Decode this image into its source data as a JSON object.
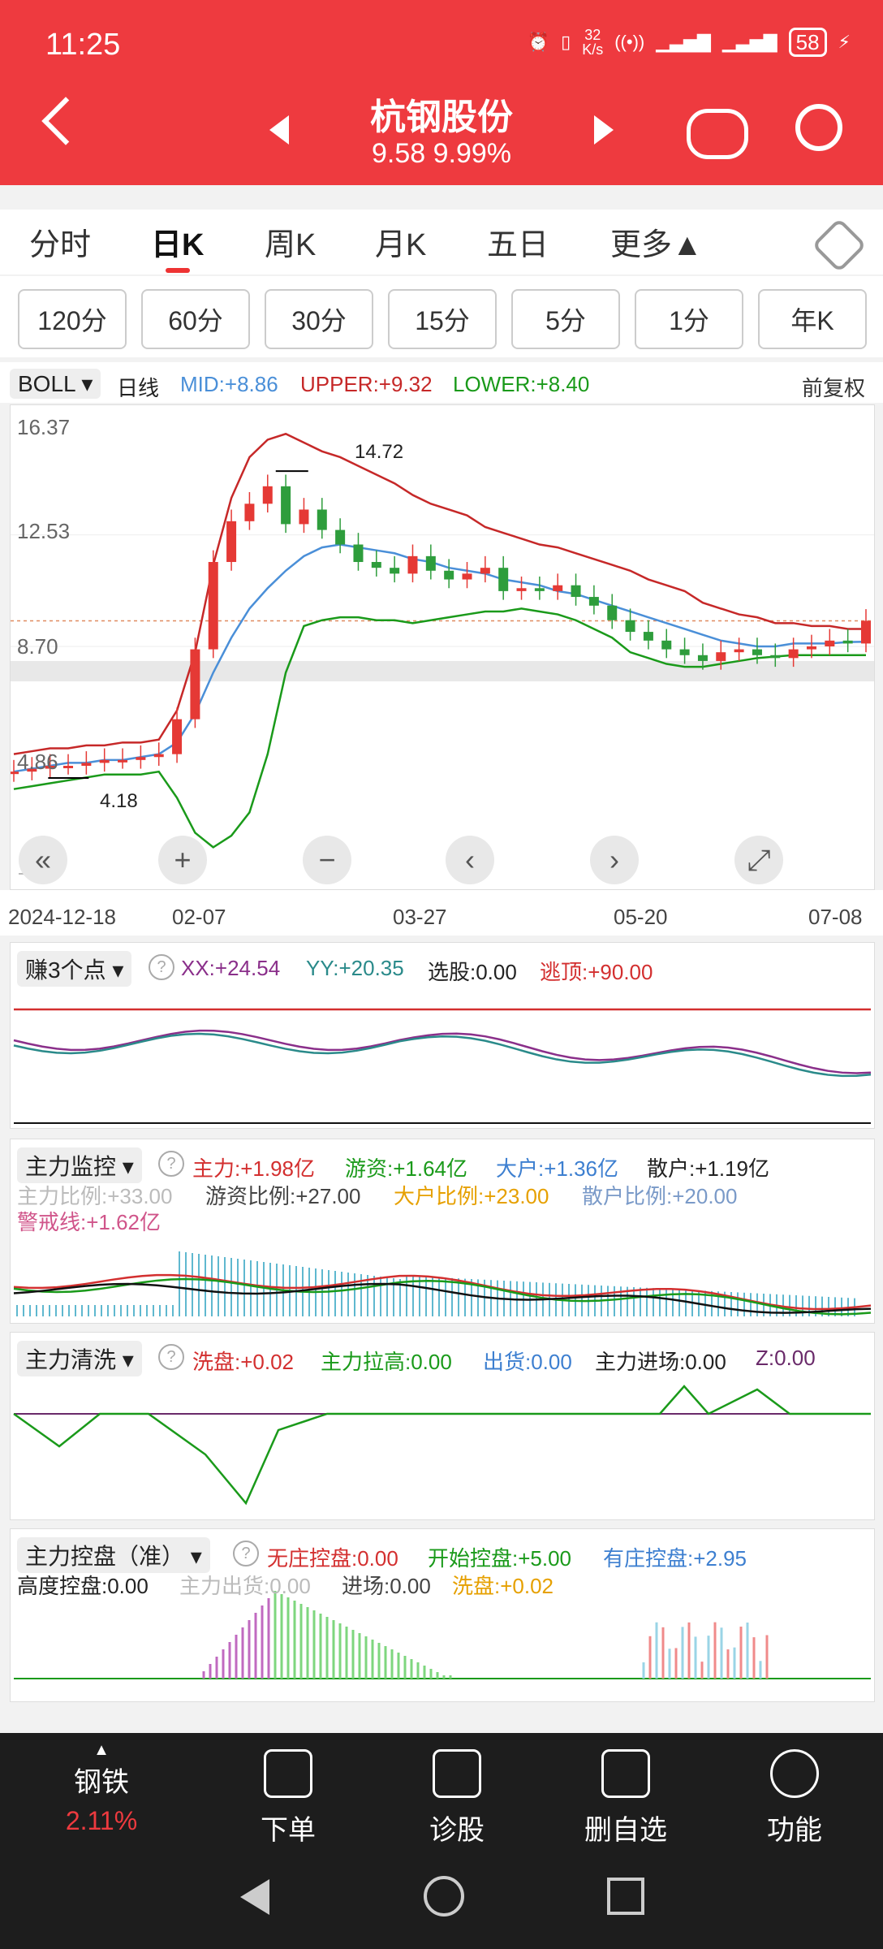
{
  "status": {
    "time": "11:25",
    "speed": "32\nK/s",
    "battery": "58"
  },
  "header": {
    "title": "杭钢股份",
    "price_change": "9.58 9.99%"
  },
  "tabs": [
    "分时",
    "日K",
    "周K",
    "月K",
    "五日",
    "更多▲"
  ],
  "intervals": [
    "120分",
    "60分",
    "30分",
    "15分",
    "5分",
    "1分",
    "年K"
  ],
  "boll": {
    "indicator": "BOLL",
    "period": "日线",
    "mid": "MID:+8.86",
    "upper": "UPPER:+9.32",
    "lower": "LOWER:+8.40",
    "adjust": "前复权"
  },
  "chart": {
    "y_ticks": [
      "16.37",
      "12.53",
      "8.70",
      "4.86",
      "1.03"
    ],
    "x_ticks": [
      "2024-12-18",
      "02-07",
      "03-27",
      "05-20",
      "07-08"
    ],
    "high_label": "14.72",
    "low_label": "4.18",
    "colors": {
      "up": "#e53935",
      "down": "#2e9d3c",
      "mid": "#4a8fd8",
      "upper": "#c62828",
      "lower": "#1a9a1a"
    }
  },
  "chart_data": {
    "type": "candlestick",
    "x_range": [
      "2024-12-18",
      "2025-07-08"
    ],
    "ylim": [
      1.03,
      16.37
    ],
    "y_ticks": [
      16.37,
      12.53,
      8.7,
      4.86,
      1.03
    ],
    "high": 14.72,
    "low": 4.18,
    "upper": [
      5.0,
      5.1,
      5.2,
      5.2,
      5.3,
      5.3,
      5.4,
      5.4,
      5.5,
      6.5,
      8.5,
      11.5,
      13.8,
      15.2,
      15.8,
      16.0,
      15.7,
      15.4,
      15.2,
      14.9,
      14.6,
      14.3,
      13.9,
      13.6,
      13.4,
      13.2,
      12.8,
      12.6,
      12.4,
      12.2,
      12.1,
      11.9,
      11.7,
      11.5,
      11.3,
      11.0,
      10.8,
      10.6,
      10.2,
      10.0,
      9.8,
      9.7,
      9.5,
      9.5,
      9.4,
      9.4,
      9.3,
      9.3
    ],
    "mid": [
      4.4,
      4.5,
      4.6,
      4.7,
      4.7,
      4.8,
      4.8,
      4.9,
      5.0,
      5.4,
      6.4,
      7.8,
      9.0,
      10.0,
      10.7,
      11.3,
      11.8,
      12.1,
      12.2,
      12.1,
      12.0,
      11.9,
      11.7,
      11.6,
      11.4,
      11.3,
      11.2,
      11.0,
      10.9,
      10.8,
      10.6,
      10.5,
      10.3,
      10.1,
      9.9,
      9.7,
      9.5,
      9.3,
      9.1,
      8.9,
      8.8,
      8.7,
      8.7,
      8.8,
      8.8,
      8.8,
      8.85,
      8.86
    ],
    "lower": [
      3.8,
      3.9,
      4.0,
      4.1,
      4.2,
      4.3,
      4.3,
      4.3,
      4.4,
      3.5,
      2.3,
      1.8,
      2.2,
      3.0,
      5.0,
      7.8,
      9.4,
      9.6,
      9.7,
      9.7,
      9.6,
      9.6,
      9.5,
      9.6,
      9.7,
      9.8,
      9.9,
      9.9,
      10.0,
      9.9,
      9.8,
      9.6,
      9.3,
      9.0,
      8.5,
      8.3,
      8.1,
      8.0,
      8.0,
      8.1,
      8.2,
      8.3,
      8.35,
      8.4,
      8.4,
      8.4,
      8.4,
      8.4
    ],
    "close": [
      4.4,
      4.5,
      4.6,
      4.6,
      4.7,
      4.8,
      4.8,
      4.9,
      5.0,
      6.2,
      8.6,
      11.6,
      13.0,
      13.6,
      14.2,
      12.9,
      13.4,
      12.7,
      12.2,
      11.6,
      11.4,
      11.2,
      11.8,
      11.3,
      11.0,
      11.2,
      11.4,
      10.6,
      10.7,
      10.6,
      10.8,
      10.4,
      10.1,
      9.6,
      9.2,
      8.9,
      8.6,
      8.4,
      8.2,
      8.5,
      8.6,
      8.4,
      8.3,
      8.6,
      8.7,
      8.9,
      8.8,
      9.58
    ]
  },
  "earn3": {
    "name": "赚3个点",
    "xx": "XX:+24.54",
    "yy": "YY:+20.35",
    "xg": "选股:0.00",
    "tt": "逃顶:+90.00"
  },
  "monitor": {
    "name": "主力监控",
    "zl": "主力:+1.98亿",
    "yz": "游资:+1.64亿",
    "dh": "大户:+1.36亿",
    "sh": "散户:+1.19亿",
    "zlbl": "主力比例:+33.00",
    "yzbl": "游资比例:+27.00",
    "dhbl": "大户比例:+23.00",
    "shbl": "散户比例:+20.00",
    "jjx": "警戒线:+1.62亿"
  },
  "wash": {
    "name": "主力清洗",
    "xp": "洗盘:+0.02",
    "lg": "主力拉高:0.00",
    "ch": "出货:0.00",
    "jc": "主力进场:0.00",
    "z": "Z:0.00"
  },
  "control": {
    "name": "主力控盘（准）",
    "wz": "无庄控盘:0.00",
    "ks": "开始控盘:+5.00",
    "yz": "有庄控盘:+2.95",
    "gd": "高度控盘:0.00",
    "zlch": "主力出货:0.00",
    "jc": "进场:0.00",
    "xp": "洗盘:+0.02"
  },
  "bottom": {
    "sector": "钢铁",
    "sector_change": "2.11%",
    "items": [
      "下单",
      "诊股",
      "删自选",
      "功能"
    ]
  }
}
